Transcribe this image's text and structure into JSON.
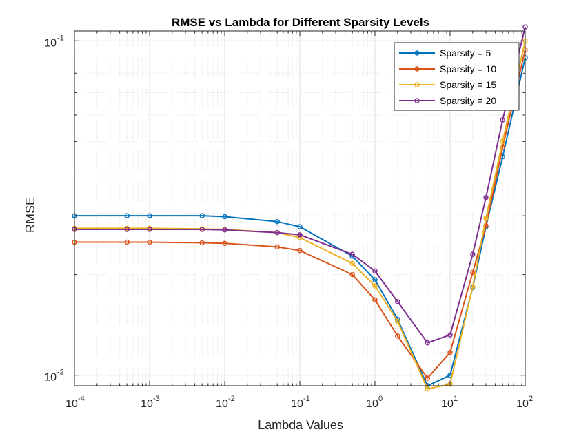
{
  "chart_data": {
    "type": "line",
    "title": "RMSE vs Lambda for Different Sparsity Levels",
    "xlabel": "Lambda Values",
    "ylabel": "RMSE",
    "x_scale": "log",
    "y_scale": "log",
    "xlim": [
      0.0001,
      100
    ],
    "ylim": [
      0.0093,
      0.107
    ],
    "grid": true,
    "minor_grid": true,
    "legend_position": "top-right",
    "x_ticks": [
      {
        "base": "10",
        "exp": "-4"
      },
      {
        "base": "10",
        "exp": "-3"
      },
      {
        "base": "10",
        "exp": "-2"
      },
      {
        "base": "10",
        "exp": "-1"
      },
      {
        "base": "10",
        "exp": "0"
      },
      {
        "base": "10",
        "exp": "1"
      },
      {
        "base": "10",
        "exp": "2"
      }
    ],
    "y_ticks": [
      {
        "base": "10",
        "exp": "-2"
      },
      {
        "base": "10",
        "exp": "-1"
      }
    ],
    "x": [
      0.0001,
      0.0005,
      0.001,
      0.005,
      0.01,
      0.05,
      0.1,
      0.5,
      1,
      2,
      5,
      10,
      20,
      30,
      50,
      100
    ],
    "series": [
      {
        "name": "Sparsity = 5",
        "color": "#0072BD",
        "values": [
          0.03,
          0.03,
          0.03,
          0.03,
          0.0298,
          0.0288,
          0.0278,
          0.0227,
          0.0193,
          0.0147,
          0.0093,
          0.01,
          0.0183,
          0.0278,
          0.045,
          0.089
        ]
      },
      {
        "name": "Sparsity = 10",
        "color": "#D95319",
        "values": [
          0.025,
          0.025,
          0.025,
          0.0249,
          0.0248,
          0.0242,
          0.0236,
          0.02,
          0.0168,
          0.0131,
          0.0098,
          0.0117,
          0.0203,
          0.028,
          0.048,
          0.094
        ]
      },
      {
        "name": "Sparsity = 15",
        "color": "#EDB120",
        "values": [
          0.0275,
          0.0275,
          0.0275,
          0.0274,
          0.0273,
          0.0267,
          0.0258,
          0.0216,
          0.0185,
          0.0145,
          0.0091,
          0.0094,
          0.0184,
          0.0295,
          0.05,
          0.1
        ]
      },
      {
        "name": "Sparsity = 20",
        "color": "#7E2F8E",
        "values": [
          0.0273,
          0.0273,
          0.0273,
          0.0273,
          0.0272,
          0.0267,
          0.0263,
          0.023,
          0.0205,
          0.0166,
          0.0125,
          0.0132,
          0.023,
          0.034,
          0.058,
          0.11
        ]
      }
    ]
  }
}
